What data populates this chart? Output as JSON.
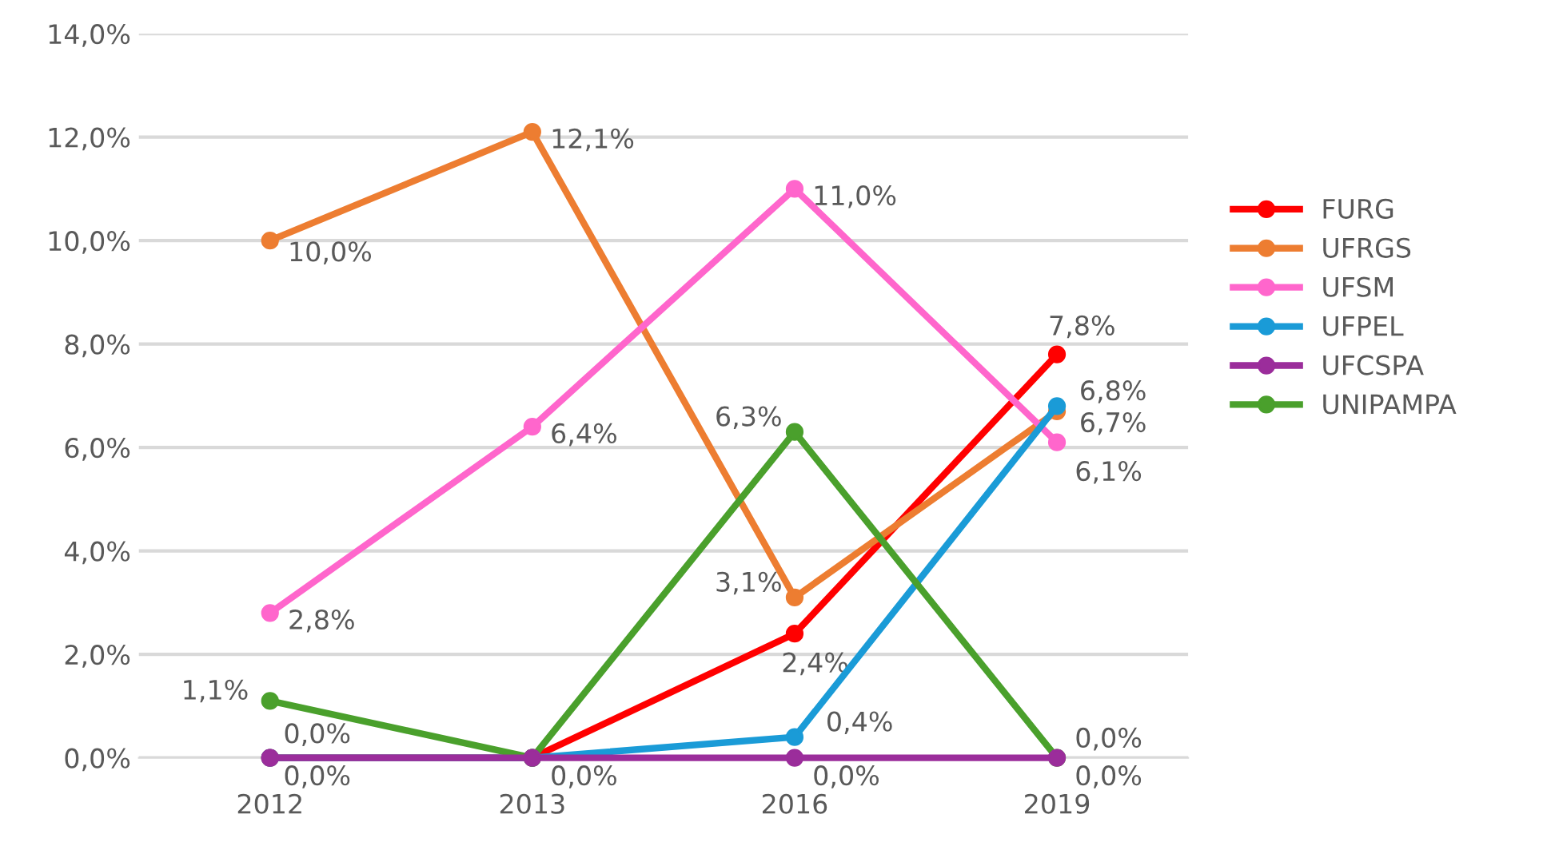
{
  "chart_data": {
    "type": "line",
    "categories": [
      "2012",
      "2013",
      "2016",
      "2019"
    ],
    "series": [
      {
        "name": "FURG",
        "color": "#ff0000",
        "values": [
          0.0,
          0.0,
          2.4,
          7.8
        ],
        "value_labels": [
          null,
          null,
          "2,4%",
          "7,8%"
        ]
      },
      {
        "name": "UFRGS",
        "color": "#ed7d31",
        "values": [
          10.0,
          12.1,
          3.1,
          6.7
        ],
        "value_labels": [
          "10,0%",
          "12,1%",
          "3,1%",
          "6,7%"
        ]
      },
      {
        "name": "UFSM",
        "color": "#ff66cc",
        "values": [
          2.8,
          6.4,
          11.0,
          6.1
        ],
        "value_labels": [
          "2,8%",
          "6,4%",
          "11,0%",
          "6,1%"
        ]
      },
      {
        "name": "UFPEL",
        "color": "#1a9bd7",
        "values": [
          0.0,
          0.0,
          0.4,
          6.8
        ],
        "value_labels": [
          "0,0%",
          null,
          "0,4%",
          "6,8%"
        ]
      },
      {
        "name": "UFCSPA",
        "color": "#9b2d9b",
        "values": [
          0.0,
          0.0,
          0.0,
          0.0
        ],
        "value_labels": [
          "0,0%",
          null,
          "0,0%",
          "0,0%"
        ]
      },
      {
        "name": "UNIPAMPA",
        "color": "#4aa02c",
        "values": [
          1.1,
          0.0,
          6.3,
          0.0
        ],
        "value_labels": [
          "1,1%",
          "0,0%",
          "6,3%",
          "0,0%"
        ]
      }
    ],
    "ylim": [
      0,
      14
    ],
    "yticks": [
      {
        "value": 0,
        "label": "0,0%"
      },
      {
        "value": 2,
        "label": "2,0%"
      },
      {
        "value": 4,
        "label": "4,0%"
      },
      {
        "value": 6,
        "label": "6,0%"
      },
      {
        "value": 8,
        "label": "8,0%"
      },
      {
        "value": 10,
        "label": "10,0%"
      },
      {
        "value": 12,
        "label": "12,0%"
      },
      {
        "value": 14,
        "label": "14,0%"
      }
    ],
    "grid": "y",
    "legend": "right",
    "marker": "circle",
    "line_style": "solid"
  }
}
